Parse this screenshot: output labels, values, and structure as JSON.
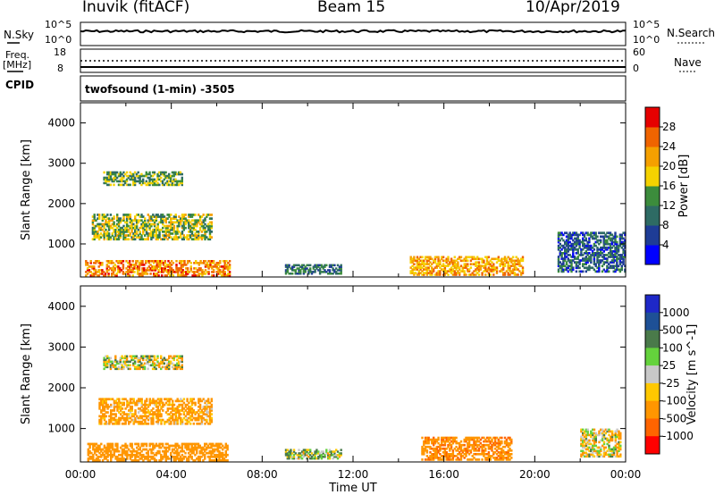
{
  "header": {
    "station": "Inuvik (fitACF)",
    "beam": "Beam 15",
    "date": "10/Apr/2019"
  },
  "top_panels": {
    "nsky_label": "N.Sky",
    "nsky_ticks": [
      "10^5",
      "10^0"
    ],
    "nsearch_label": "N.Search",
    "nsearch_ticks": [
      "10^5",
      "10^0"
    ],
    "freq_label_1": "Freq.",
    "freq_label_2": "[MHz]",
    "freq_ticks": [
      "18",
      "8"
    ],
    "nave_label": "Nave",
    "nave_ticks": [
      "60",
      "0"
    ],
    "cpid_label": "CPID",
    "cpid_text": "twofsound (1-min) -3505"
  },
  "colors": {
    "power_scale": [
      "#0000ff",
      "#1e3c96",
      "#2e6b64",
      "#3c8c3c",
      "#f5d200",
      "#f5a000",
      "#f06400",
      "#e60000"
    ],
    "velocity_scale": [
      "#1e28c8",
      "#1e5096",
      "#4a7a4a",
      "#64d23c",
      "#c8c8c8",
      "#ffc800",
      "#ff9600",
      "#ff6400",
      "#ff0000"
    ]
  },
  "chart_data": [
    {
      "type": "heatmap",
      "ylabel": "Slant Range [km]",
      "yticks": [
        "4000",
        "3000",
        "2000",
        "1000"
      ],
      "ylim": [
        180,
        4500
      ],
      "xlim": [
        0,
        24
      ],
      "colorbar_label": "Power [dB]",
      "colorbar_ticks": [
        "28",
        "24",
        "20",
        "16",
        "12",
        "8",
        "4"
      ],
      "colorbar_range": [
        0,
        32
      ],
      "regions": [
        {
          "t0": 0.2,
          "t1": 6.6,
          "r0": 200,
          "r1": 600,
          "value": 24
        },
        {
          "t0": 1.0,
          "t1": 4.5,
          "r0": 2450,
          "r1": 2800,
          "value": 14
        },
        {
          "t0": 0.5,
          "t1": 5.8,
          "r0": 1100,
          "r1": 1750,
          "value": 16
        },
        {
          "t0": 9.0,
          "t1": 11.5,
          "r0": 250,
          "r1": 500,
          "value": 10
        },
        {
          "t0": 14.5,
          "t1": 19.5,
          "r0": 220,
          "r1": 700,
          "value": 22
        },
        {
          "t0": 21.0,
          "t1": 24.0,
          "r0": 300,
          "r1": 1300,
          "value": 8
        }
      ]
    },
    {
      "type": "heatmap",
      "ylabel": "Slant Range [km]",
      "xlabel": "Time UT",
      "yticks": [
        "4000",
        "3000",
        "2000",
        "1000"
      ],
      "xticks": [
        "00:00",
        "04:00",
        "08:00",
        "12:00",
        "16:00",
        "20:00",
        "00:00"
      ],
      "ylim": [
        180,
        4500
      ],
      "xlim": [
        0,
        24
      ],
      "colorbar_label": "Velocity [m s^-1]",
      "colorbar_ticks": [
        "1000",
        "500",
        "100",
        "25",
        "-25",
        "-100",
        "-500",
        "-1000"
      ],
      "regions": [
        {
          "t0": 0.3,
          "t1": 6.5,
          "r0": 200,
          "r1": 650,
          "value": -300
        },
        {
          "t0": 1.0,
          "t1": 4.5,
          "r0": 2450,
          "r1": 2800,
          "value": 0
        },
        {
          "t0": 0.8,
          "t1": 5.8,
          "r0": 1100,
          "r1": 1750,
          "value": -200
        },
        {
          "t0": 9.0,
          "t1": 11.5,
          "r0": 250,
          "r1": 500,
          "value": 80
        },
        {
          "t0": 15.0,
          "t1": 19.0,
          "r0": 220,
          "r1": 800,
          "value": -400
        },
        {
          "t0": 22.0,
          "t1": 23.8,
          "r0": 300,
          "r1": 1000,
          "value": -60
        }
      ]
    }
  ]
}
